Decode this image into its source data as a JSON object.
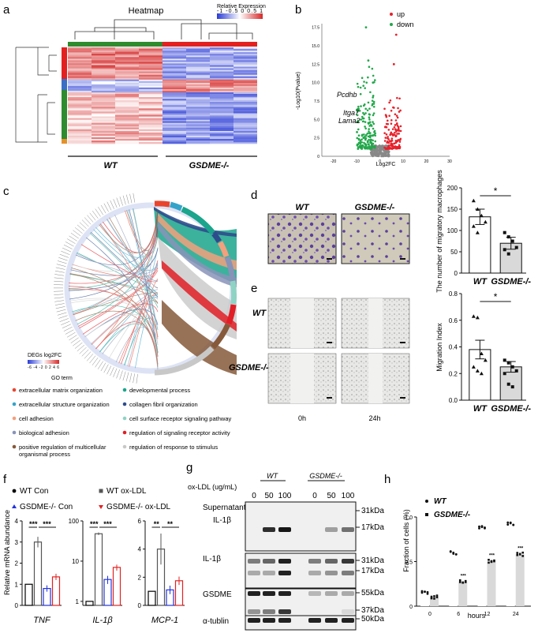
{
  "panel_labels": [
    "a",
    "b",
    "c",
    "d",
    "e",
    "f",
    "g",
    "h"
  ],
  "a": {
    "title": "Heatmap",
    "legend_title": "Relative Expression",
    "legend_ticks": [
      "-1",
      "-0.5",
      "0",
      "0.5",
      "1"
    ],
    "groups": [
      "WT",
      "GSDME-/-"
    ],
    "colors": {
      "wt_bar": "#2e8b2e",
      "ko_bar": "#e32020",
      "low": "#2a3cd6",
      "high": "#d62a2a"
    }
  },
  "b": {
    "legend": [
      "up",
      "down"
    ],
    "xlabel": "Log2FC",
    "ylabel": "-Log10(Pvalue)",
    "genes": [
      "Pcdhb",
      "Itga7",
      "Lama2"
    ],
    "xticks": [
      "-20",
      "-10",
      "0",
      "10",
      "20",
      "30"
    ],
    "yticks": [
      "0",
      "2.5",
      "5.0",
      "7.5",
      "10.0",
      "12.5",
      "15.0",
      "17.5"
    ],
    "colors": {
      "up": "#e8202a",
      "down": "#22a84a",
      "ns": "#888888"
    }
  },
  "c": {
    "legend_title": "DEGs log2FC",
    "legend_scale": [
      "-6",
      "-4",
      "-2",
      "0",
      "2",
      "4",
      "6"
    ],
    "go_title": "GO term",
    "terms": [
      {
        "label": "extracellular matrix organization",
        "color": "#e8452e"
      },
      {
        "label": "developmental process",
        "color": "#1aa58c"
      },
      {
        "label": "extracellular structure organization",
        "color": "#34a3c9"
      },
      {
        "label": "collagen fibril organization",
        "color": "#2d4c8c"
      },
      {
        "label": "cell adhesion",
        "color": "#f2a07d"
      },
      {
        "label": "cell surface receptor signaling pathway",
        "color": "#8fd3c4"
      },
      {
        "label": "biological adhesion",
        "color": "#8893b8"
      },
      {
        "label": "regulation of signaling receptor activity",
        "color": "#e11e26"
      },
      {
        "label": "positive regulation of multicellular organismal process",
        "color": "#86593a"
      },
      {
        "label": "regulation of response to stimulus",
        "color": "#c8c8c8"
      }
    ]
  },
  "d": {
    "groups": [
      "WT",
      "GSDME-/-"
    ],
    "ylabel": "The number of migratory macrophages",
    "sig": "*",
    "chart_data": {
      "type": "bar",
      "categories": [
        "WT",
        "GSDME-/-"
      ],
      "values": [
        132,
        70
      ],
      "errors": [
        18,
        14
      ],
      "ylim": [
        0,
        200
      ],
      "yticks": [
        "0",
        "50",
        "100",
        "150",
        "200"
      ],
      "points": [
        [
          170,
          150,
          135,
          120,
          110,
          95
        ],
        [
          95,
          85,
          75,
          60,
          55,
          45
        ]
      ]
    }
  },
  "e": {
    "rows": [
      "WT",
      "GSDME-/-"
    ],
    "cols": [
      "0h",
      "24h"
    ],
    "ylabel": "Migration Index",
    "sig": "*",
    "chart_data": {
      "type": "bar",
      "categories": [
        "WT",
        "GSDME-/-"
      ],
      "values": [
        0.38,
        0.25
      ],
      "errors": [
        0.07,
        0.04
      ],
      "ylim": [
        0,
        0.8
      ],
      "yticks": [
        "0.0",
        "0.2",
        "0.4",
        "0.6",
        "0.8"
      ],
      "points": [
        [
          0.63,
          0.62,
          0.35,
          0.3,
          0.25,
          0.22,
          0.2
        ],
        [
          0.3,
          0.28,
          0.25,
          0.22,
          0.2,
          0.12,
          0.1
        ]
      ]
    }
  },
  "f": {
    "legend": [
      {
        "text": "WT Con",
        "color": "#000000"
      },
      {
        "text": "WT ox-LDL",
        "color": "#555555"
      },
      {
        "text": "GSDME-/- Con",
        "color": "#2233dd"
      },
      {
        "text": "GSDME-/- ox-LDL",
        "color": "#e22222"
      }
    ],
    "ylabel": "Relative mRNA abundance",
    "chart_data": [
      {
        "type": "bar",
        "gene": "TNF",
        "categories": [
          "WT Con",
          "WT ox-LDL",
          "GSDME-/- Con",
          "GSDME-/- ox-LDL"
        ],
        "values": [
          1.0,
          3.0,
          0.8,
          1.35
        ],
        "errors": [
          0.0,
          0.25,
          0.15,
          0.15
        ],
        "ylim": [
          0,
          4
        ],
        "yticks": [
          "0",
          "1",
          "2",
          "3",
          "4"
        ],
        "sig": [
          "***",
          "***"
        ]
      },
      {
        "type": "bar",
        "gene": "IL-1β",
        "categories": [
          "WT Con",
          "WT ox-LDL",
          "GSDME-/- Con",
          "GSDME-/- ox-LDL"
        ],
        "values": [
          1.0,
          48,
          3.5,
          7.0
        ],
        "errors": [
          0.0,
          3.5,
          0.8,
          1.2
        ],
        "ylim": [
          0,
          60
        ],
        "ylog": true,
        "yticks": [
          "1",
          "10",
          "100"
        ],
        "sig": [
          "***",
          "***"
        ]
      },
      {
        "type": "bar",
        "gene": "MCP-1",
        "categories": [
          "WT Con",
          "WT ox-LDL",
          "GSDME-/- Con",
          "GSDME-/- ox-LDL"
        ],
        "values": [
          1.0,
          4.0,
          1.1,
          1.75
        ],
        "errors": [
          0.0,
          1.1,
          0.3,
          0.3
        ],
        "ylim": [
          0,
          6
        ],
        "yticks": [
          "0",
          "2",
          "4",
          "6"
        ],
        "sig": [
          "**",
          "**"
        ]
      }
    ]
  },
  "g": {
    "oxldl_label": "ox-LDL (ug/mL)",
    "groups": [
      "WT",
      "GSDME-/-"
    ],
    "doses": [
      "0",
      "50",
      "100",
      "0",
      "50",
      "100"
    ],
    "blots": [
      {
        "name": "Supernatant IL-1β",
        "line1": "Supernatant",
        "line2": "IL-1β",
        "markers": [
          "31kDa",
          "17kDa"
        ]
      },
      {
        "name": "IL-1β",
        "line1": "IL-1β",
        "line2": "",
        "markers": [
          "31kDa",
          "17kDa"
        ]
      },
      {
        "name": "GSDME",
        "line1": "GSDME",
        "line2": "",
        "markers": [
          "55kDa",
          "37kDa"
        ]
      },
      {
        "name": "α-tublin",
        "line1": "α-tublin",
        "line2": "",
        "markers": [
          "50kDa"
        ]
      }
    ]
  },
  "h": {
    "legend": [
      "WT",
      "GSDME-/-"
    ],
    "xlabel": "hours",
    "ylabel": "Fraction of cells (%)",
    "sig": [
      "***",
      "***",
      "***"
    ],
    "chart_data": {
      "type": "bar",
      "categories": [
        "0",
        "6",
        "12",
        "24"
      ],
      "series": [
        {
          "name": "WT",
          "values": [
            0.15,
            0.6,
            0.88,
            0.92
          ],
          "errors": [
            0.01,
            0.02,
            0.01,
            0.01
          ]
        },
        {
          "name": "GSDME-/-",
          "values": [
            0.1,
            0.27,
            0.5,
            0.58
          ],
          "errors": [
            0.01,
            0.01,
            0.02,
            0.01
          ]
        }
      ],
      "ylim": [
        0,
        1.0
      ],
      "yticks": [
        "0",
        "0.5",
        "1.0"
      ]
    }
  }
}
